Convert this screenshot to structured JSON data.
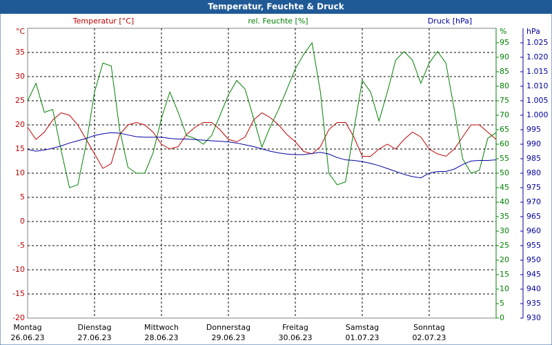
{
  "chart_data": {
    "type": "line",
    "title": "Temperatur, Feuchte & Druck",
    "y_unit": "°C",
    "y2_unit": "%",
    "y3_unit": "hPa",
    "days": [
      {
        "name": "Montag",
        "date": "26.06.23"
      },
      {
        "name": "Dienstag",
        "date": "27.06.23"
      },
      {
        "name": "Mittwoch",
        "date": "28.06.23"
      },
      {
        "name": "Donnerstag",
        "date": "29.06.23"
      },
      {
        "name": "Freitag",
        "date": "30.06.23"
      },
      {
        "name": "Samstag",
        "date": "01.07.23"
      },
      {
        "name": "Sonntag",
        "date": "02.07.23"
      }
    ],
    "ylim": [
      -20,
      40
    ],
    "yticks": [
      -20,
      -15,
      -10,
      -5,
      0,
      5,
      10,
      15,
      20,
      25,
      30,
      35
    ],
    "y2lim": [
      0,
      100
    ],
    "y2ticks": [
      0,
      5,
      10,
      15,
      20,
      25,
      30,
      35,
      40,
      45,
      50,
      55,
      60,
      65,
      70,
      75,
      80,
      85,
      90,
      95
    ],
    "y3lim": [
      930,
      1030
    ],
    "y3ticks": [
      930,
      935,
      940,
      945,
      950,
      955,
      960,
      965,
      970,
      975,
      980,
      985,
      990,
      995,
      {
        "value": 1000,
        "label": "1.000"
      },
      {
        "value": 1005,
        "label": "1.005"
      },
      {
        "value": 1010,
        "label": "1.010"
      },
      {
        "value": 1015,
        "label": "1.015"
      },
      {
        "value": 1020,
        "label": "1.020"
      },
      {
        "value": 1025,
        "label": "1.025"
      }
    ],
    "grid": true,
    "series": [
      {
        "name": "Temperatur [°C]",
        "color": "#c00000",
        "axis": "y",
        "values": [
          19.5,
          17,
          18.5,
          21,
          22.5,
          22,
          20,
          17,
          14,
          11,
          12,
          18,
          20,
          20.5,
          20,
          18.5,
          16,
          15,
          15.5,
          18,
          19.5,
          20.5,
          20.5,
          19,
          17,
          16.5,
          17.5,
          21,
          22.5,
          21.5,
          20,
          18,
          16.5,
          14.5,
          14,
          15.5,
          19,
          20.5,
          20.5,
          17.5,
          13.5,
          13.5,
          15,
          16,
          15,
          17,
          18.5,
          17.5,
          15,
          14,
          13.5,
          15,
          17.5,
          20,
          20,
          18.5,
          17
        ]
      },
      {
        "name": "rel. Feuchte [%]",
        "color": "#008000",
        "axis": "y2",
        "values": [
          75,
          81,
          71,
          72,
          58,
          45,
          46,
          60,
          78,
          88,
          87,
          65,
          52,
          50,
          50,
          57,
          69,
          78,
          71,
          63,
          62,
          60,
          63,
          70,
          77,
          82,
          79,
          69,
          59,
          66,
          72,
          79,
          86,
          91,
          95,
          78,
          50,
          46,
          47,
          65,
          82,
          78,
          68,
          78,
          89,
          92,
          89,
          81,
          88,
          92,
          88,
          72,
          55,
          50,
          51,
          62,
          64
        ]
      },
      {
        "name": "Druck [hPa]",
        "color": "#0000a0",
        "axis": "y3",
        "values": [
          988.2,
          987.6,
          988,
          988.6,
          989.4,
          990.4,
          991.2,
          992,
          993,
          993.6,
          994,
          993.8,
          993.2,
          992.6,
          992.4,
          992.4,
          992.4,
          992,
          991.8,
          991.8,
          991.6,
          991.4,
          991.2,
          991,
          990.8,
          990.4,
          989.8,
          989.2,
          988.4,
          987.6,
          987,
          986.6,
          986.4,
          986.4,
          986.8,
          987.2,
          986.6,
          985.4,
          984.6,
          984.4,
          984,
          983.4,
          982.6,
          981.6,
          980.6,
          979.6,
          978.8,
          978.4,
          980,
          980.6,
          980.6,
          981.4,
          983,
          984.2,
          984.4,
          984.4,
          984.6
        ]
      }
    ]
  }
}
